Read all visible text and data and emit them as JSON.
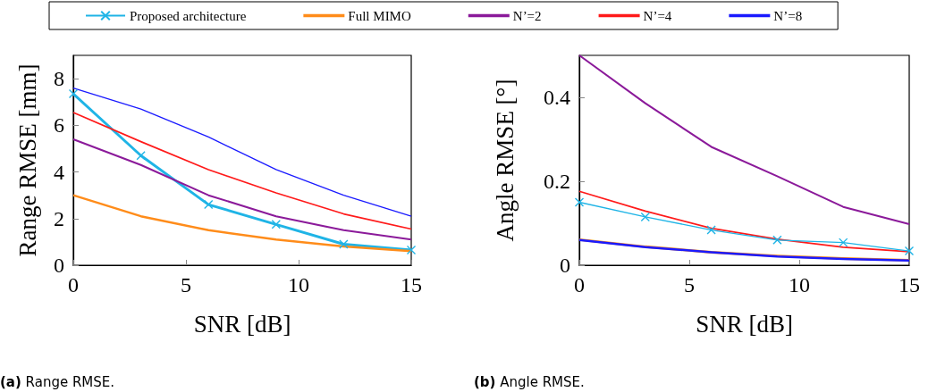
{
  "chart_data": [
    {
      "type": "line",
      "xlabel": "SNR [dB]",
      "ylabel": "Range RMSE [mm]",
      "x": [
        0,
        3,
        6,
        9,
        12,
        15
      ],
      "xlim": [
        0,
        15
      ],
      "xticks": [
        0,
        5,
        10,
        15
      ],
      "ylim": [
        0,
        9
      ],
      "yticks": [
        0,
        2,
        4,
        6,
        8
      ],
      "grid": false,
      "legend": "top",
      "line_style": "solid",
      "annotations": [
        "(a) Range RMSE."
      ],
      "series": [
        {
          "name": "Proposed architecture",
          "color": "#1fb4e6",
          "marker": "cross",
          "values": [
            7.35,
            4.7,
            2.6,
            1.75,
            0.9,
            0.65
          ]
        },
        {
          "name": "Full MIMO",
          "color": "#ff8c1a",
          "marker": "none",
          "values": [
            3.0,
            2.1,
            1.5,
            1.1,
            0.8,
            0.6
          ]
        },
        {
          "name": "N’=2",
          "color": "#8b1a9a",
          "marker": "none",
          "values": [
            5.4,
            4.3,
            3.0,
            2.1,
            1.5,
            1.1
          ]
        },
        {
          "name": "N’=4",
          "color": "#ff1a1a",
          "marker": "none",
          "values": [
            6.55,
            5.3,
            4.1,
            3.1,
            2.2,
            1.55
          ]
        },
        {
          "name": "N’=8",
          "color": "#1a1aff",
          "marker": "none",
          "values": [
            7.6,
            6.7,
            5.5,
            4.1,
            3.0,
            2.1
          ]
        }
      ]
    },
    {
      "type": "line",
      "xlabel": "SNR [dB]",
      "ylabel": "Angle RMSE [°]",
      "x": [
        0,
        3,
        6,
        9,
        12,
        15
      ],
      "xlim": [
        0,
        15
      ],
      "xticks": [
        0,
        5,
        10,
        15
      ],
      "ylim": [
        0,
        0.5
      ],
      "yticks": [
        0,
        0.2,
        0.4
      ],
      "grid": false,
      "legend": false,
      "line_style": "solid",
      "annotations": [
        "(b) Angle RMSE."
      ],
      "series": [
        {
          "color": "#ff8c1a",
          "marker": "none",
          "values": [
            0.061,
            0.044,
            0.031,
            0.022,
            0.016,
            0.012
          ]
        },
        {
          "color": "#1a1aff",
          "marker": "none",
          "values": [
            0.06,
            0.043,
            0.031,
            0.021,
            0.015,
            0.011
          ]
        },
        {
          "color": "#8b1a9a",
          "marker": "none",
          "values": [
            0.5,
            0.386,
            0.282,
            0.212,
            0.139,
            0.098
          ]
        },
        {
          "color": "#ff1a1a",
          "marker": "none",
          "values": [
            0.176,
            0.129,
            0.088,
            0.062,
            0.043,
            0.032
          ]
        },
        {
          "color": "#1fb4e6",
          "marker": "cross",
          "values": [
            0.15,
            0.115,
            0.084,
            0.06,
            0.054,
            0.034
          ]
        }
      ]
    }
  ]
}
